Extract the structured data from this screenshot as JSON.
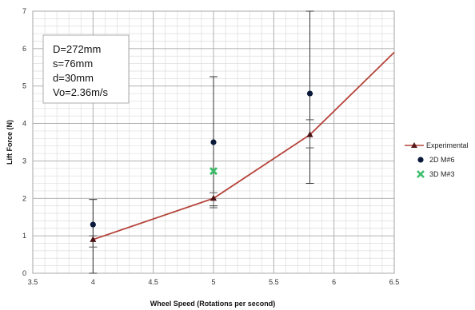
{
  "chart_data": {
    "type": "line",
    "xlabel": "Wheel Speed (Rotations per second)",
    "ylabel": "Lift  Force (N)",
    "xlim": [
      3.5,
      6.5
    ],
    "ylim": [
      0,
      7
    ],
    "x_ticks": [
      "3.5",
      "4",
      "4.5",
      "5",
      "5.5",
      "6",
      "6.5"
    ],
    "y_ticks": [
      "0",
      "1",
      "2",
      "3",
      "4",
      "5",
      "6",
      "7"
    ],
    "grid": true,
    "legend_position": "right",
    "annotation": [
      "D=272mm",
      "s=76mm",
      "d=30mm",
      "Vo=2.36m/s"
    ],
    "series": [
      {
        "name": "Experimental",
        "type": "line",
        "marker": "triangle",
        "color": "#B5443B",
        "x": [
          4,
          5,
          5.8,
          6.5
        ],
        "y": [
          0.9,
          2.0,
          3.7,
          5.9
        ],
        "markers_at": [
          4,
          5,
          5.8
        ],
        "errors": [
          {
            "x": 4,
            "low": 0.7,
            "high": 1.0
          },
          {
            "x": 5,
            "low": 1.75,
            "high": 2.15
          },
          {
            "x": 5.8,
            "low": 3.35,
            "high": 4.1
          }
        ]
      },
      {
        "name": "2D M#6",
        "type": "scatter",
        "marker": "circle",
        "color": "#0B1A3A",
        "x": [
          4,
          5,
          5.8
        ],
        "y": [
          1.3,
          3.5,
          4.8
        ],
        "errors": [
          {
            "x": 4,
            "low": 0.0,
            "high": 1.97
          },
          {
            "x": 5,
            "low": 1.8,
            "high": 5.25
          },
          {
            "x": 5.8,
            "low": 2.4,
            "high": 7.0
          }
        ]
      },
      {
        "name": "3D M#3",
        "type": "scatter",
        "marker": "x",
        "color": "#3DBE6A",
        "x": [
          5
        ],
        "y": [
          2.73
        ]
      }
    ]
  }
}
